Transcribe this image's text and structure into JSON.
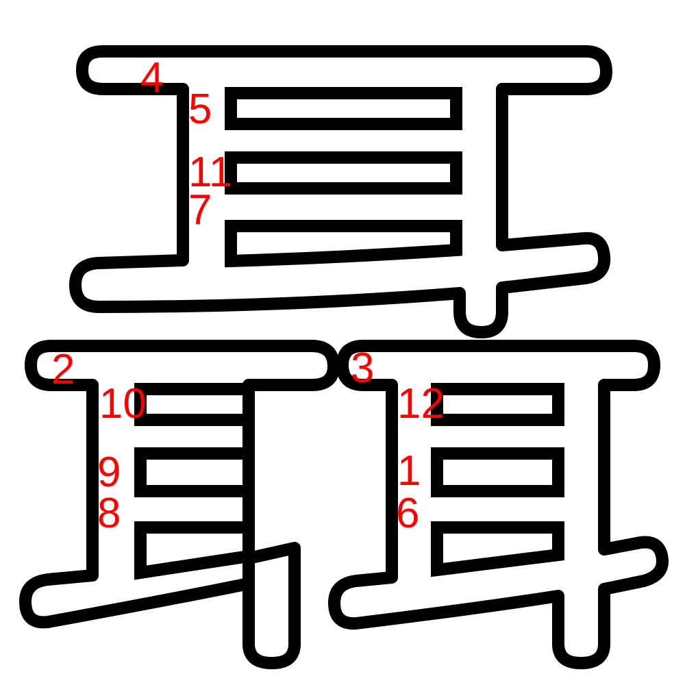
{
  "glyph": {
    "character": "聶",
    "outline_color": "#000000",
    "fill_color": "#ffffff",
    "label_color": "#ff0000"
  },
  "stroke_order_labels": {
    "one": "1",
    "two": "2",
    "three": "3",
    "four": "4",
    "five": "5",
    "six": "6",
    "seven": "7",
    "eight": "8",
    "nine": "9",
    "ten": "10",
    "eleven": "11",
    "twelve": "12"
  }
}
